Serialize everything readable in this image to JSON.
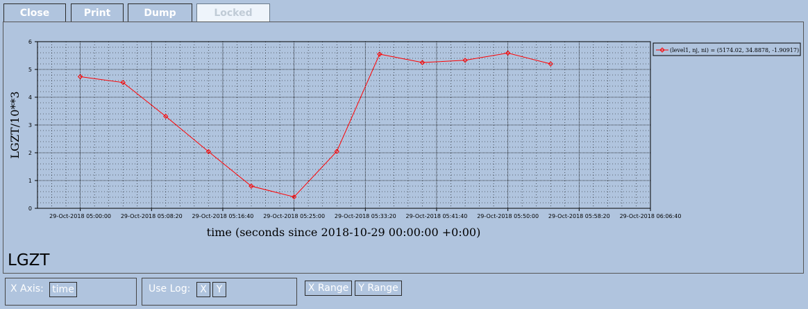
{
  "toolbar": {
    "close_label": "Close",
    "print_label": "Print",
    "dump_label": "Dump",
    "locked_label": "Locked"
  },
  "panel": {
    "label": "LGZT"
  },
  "controls": {
    "x_axis_label": "X Axis:",
    "x_axis_value": "time",
    "use_log_label": "Use Log:",
    "log_x_label": "X",
    "log_y_label": "Y",
    "x_range_label": "X Range",
    "y_range_label": "Y Range"
  },
  "colors": {
    "background": "#b0c4de",
    "series": "#ff0000",
    "plot_bg": "#b0c4de"
  },
  "chart_data": {
    "type": "line",
    "xlabel": "time (seconds since 2018-10-29 00:00:00 +0:00)",
    "ylabel": "LGZT/10**3",
    "x_ticks": [
      "29-Oct-2018 05:00:00",
      "29-Oct-2018 05:08:20",
      "29-Oct-2018 05:16:40",
      "29-Oct-2018 05:25:00",
      "29-Oct-2018 05:33:20",
      "29-Oct-2018 05:41:40",
      "29-Oct-2018 05:50:00",
      "29-Oct-2018 05:58:20",
      "29-Oct-2018 06:06:40"
    ],
    "y_ticks": [
      "0",
      "1",
      "2",
      "3",
      "4",
      "5",
      "6"
    ],
    "xlim": [
      "29-Oct-2018 04:55:00",
      "29-Oct-2018 06:06:40"
    ],
    "ylim": [
      0,
      6
    ],
    "grid": true,
    "legend_position": "right",
    "series": [
      {
        "name": "(level1, nj, ni) = (5174.02, 34.8878, -1.90917)",
        "color": "#ff0000",
        "marker": "diamond",
        "x": [
          "29-Oct-2018 05:00:00",
          "29-Oct-2018 05:05:00",
          "29-Oct-2018 05:10:00",
          "29-Oct-2018 05:15:00",
          "29-Oct-2018 05:20:00",
          "29-Oct-2018 05:25:00",
          "29-Oct-2018 05:30:00",
          "29-Oct-2018 05:35:00",
          "29-Oct-2018 05:40:00",
          "29-Oct-2018 05:45:00",
          "29-Oct-2018 05:50:00",
          "29-Oct-2018 05:55:00"
        ],
        "values": [
          4.74,
          4.53,
          3.31,
          2.04,
          0.8,
          0.41,
          2.05,
          5.55,
          5.25,
          5.33,
          5.59,
          5.2
        ]
      }
    ]
  }
}
